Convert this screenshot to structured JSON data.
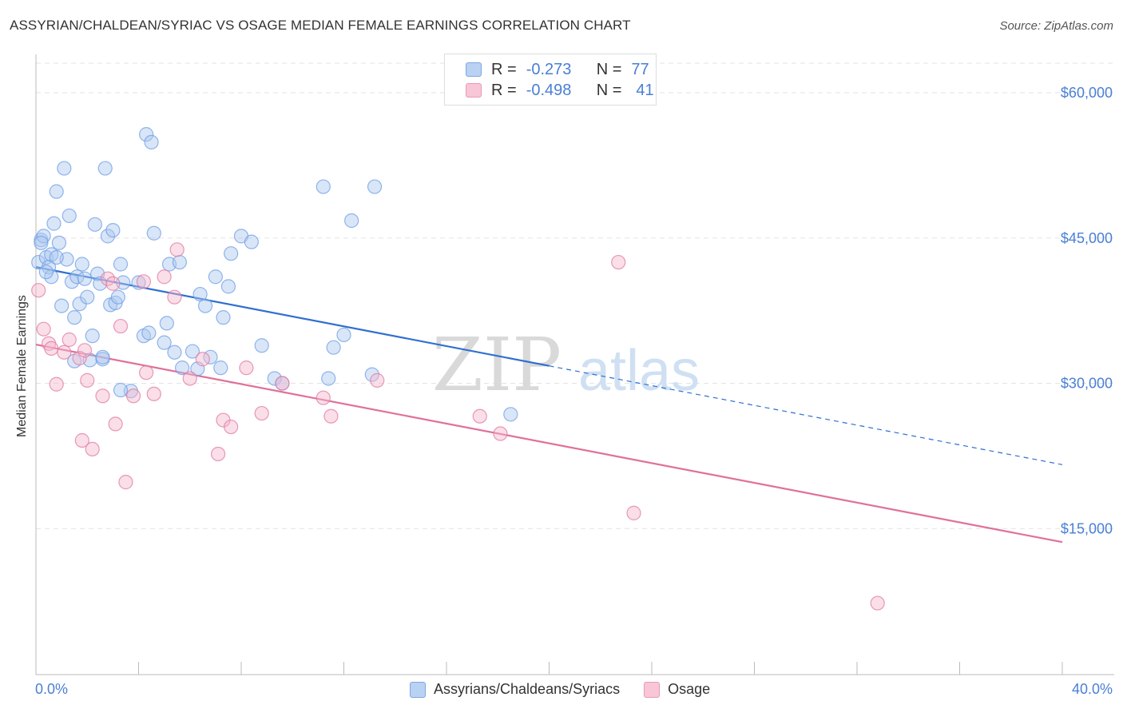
{
  "header": {
    "title": "ASSYRIAN/CHALDEAN/SYRIAC VS OSAGE MEDIAN FEMALE EARNINGS CORRELATION CHART",
    "source": "Source: ZipAtlas.com"
  },
  "watermark": {
    "zip": "ZIP",
    "atlas": "atlas"
  },
  "legend": {
    "r_label": "R =",
    "n_label": "N =",
    "rows": [
      {
        "r": "-0.273",
        "n": "77"
      },
      {
        "r": "-0.498",
        "n": "41"
      }
    ]
  },
  "chart_data": {
    "type": "scatter",
    "ylabel": "Median Female Earnings",
    "x_tick_labels": {
      "min": "0.0%",
      "max": "40.0%"
    },
    "xlim": [
      0,
      40
    ],
    "ylim": [
      0,
      63000
    ],
    "y_ticks": [
      {
        "value": 15000,
        "label": "$15,000"
      },
      {
        "value": 30000,
        "label": "$30,000"
      },
      {
        "value": 45000,
        "label": "$45,000"
      },
      {
        "value": 60000,
        "label": "$60,000"
      }
    ],
    "grid": true,
    "series": [
      {
        "name": "Assyrians/Chaldeans/Syriacs",
        "color": "#6f9de4",
        "fill": "#aac8f0",
        "trendline": {
          "x": [
            0,
            20
          ],
          "y": [
            42000,
            31800
          ],
          "dashed_to": {
            "x": 40,
            "y": 21600
          }
        },
        "points": [
          [
            0.1,
            42500
          ],
          [
            0.2,
            44800
          ],
          [
            0.3,
            45200
          ],
          [
            0.4,
            43000
          ],
          [
            0.5,
            42000
          ],
          [
            0.6,
            41000
          ],
          [
            0.7,
            46500
          ],
          [
            0.8,
            49800
          ],
          [
            0.9,
            44500
          ],
          [
            1.0,
            38000
          ],
          [
            1.1,
            52200
          ],
          [
            1.2,
            42800
          ],
          [
            1.3,
            47300
          ],
          [
            1.4,
            40500
          ],
          [
            1.5,
            36800
          ],
          [
            1.6,
            41000
          ],
          [
            1.7,
            38200
          ],
          [
            1.8,
            42300
          ],
          [
            1.9,
            40800
          ],
          [
            2.0,
            38900
          ],
          [
            2.1,
            32400
          ],
          [
            2.2,
            34900
          ],
          [
            2.3,
            46400
          ],
          [
            2.4,
            41300
          ],
          [
            2.5,
            40300
          ],
          [
            2.6,
            32500
          ],
          [
            2.7,
            52200
          ],
          [
            2.8,
            45200
          ],
          [
            2.9,
            38100
          ],
          [
            3.0,
            45800
          ],
          [
            3.1,
            38300
          ],
          [
            3.2,
            38900
          ],
          [
            3.3,
            42300
          ],
          [
            3.4,
            40400
          ],
          [
            3.7,
            29200
          ],
          [
            4.0,
            40400
          ],
          [
            4.2,
            34900
          ],
          [
            4.3,
            55700
          ],
          [
            4.4,
            35200
          ],
          [
            4.5,
            54900
          ],
          [
            4.6,
            45500
          ],
          [
            5.0,
            34200
          ],
          [
            5.2,
            42300
          ],
          [
            5.4,
            33200
          ],
          [
            5.6,
            42500
          ],
          [
            5.7,
            31600
          ],
          [
            6.1,
            33300
          ],
          [
            6.4,
            39200
          ],
          [
            6.6,
            38000
          ],
          [
            6.8,
            32700
          ],
          [
            7.0,
            41000
          ],
          [
            7.2,
            31600
          ],
          [
            7.3,
            36800
          ],
          [
            7.5,
            40000
          ],
          [
            7.6,
            43400
          ],
          [
            8.0,
            45200
          ],
          [
            8.4,
            44600
          ],
          [
            8.8,
            33900
          ],
          [
            9.3,
            30500
          ],
          [
            11.4,
            30500
          ],
          [
            11.6,
            33700
          ],
          [
            12.0,
            35000
          ],
          [
            12.3,
            46800
          ],
          [
            11.2,
            50300
          ],
          [
            13.1,
            30900
          ],
          [
            13.2,
            50300
          ],
          [
            18.5,
            26800
          ],
          [
            0.2,
            44500
          ],
          [
            0.4,
            41500
          ],
          [
            0.6,
            43300
          ],
          [
            0.8,
            43000
          ],
          [
            1.5,
            32300
          ],
          [
            2.6,
            32700
          ],
          [
            3.3,
            29300
          ],
          [
            5.1,
            36200
          ],
          [
            6.3,
            31500
          ],
          [
            9.6,
            30000
          ]
        ]
      },
      {
        "name": "Osage",
        "color": "#e07aa0",
        "fill": "#f4b6cb",
        "trendline": {
          "x": [
            0,
            40
          ],
          "y": [
            34000,
            13600
          ]
        },
        "points": [
          [
            0.1,
            39600
          ],
          [
            0.3,
            35600
          ],
          [
            0.5,
            34100
          ],
          [
            0.6,
            33600
          ],
          [
            0.8,
            29900
          ],
          [
            1.1,
            33200
          ],
          [
            1.3,
            34500
          ],
          [
            1.7,
            32600
          ],
          [
            1.8,
            24100
          ],
          [
            2.0,
            30300
          ],
          [
            2.2,
            23200
          ],
          [
            2.6,
            28700
          ],
          [
            2.8,
            40800
          ],
          [
            3.0,
            40300
          ],
          [
            3.1,
            25800
          ],
          [
            3.3,
            35900
          ],
          [
            3.5,
            19800
          ],
          [
            3.8,
            28700
          ],
          [
            4.2,
            40500
          ],
          [
            4.3,
            31100
          ],
          [
            4.6,
            28900
          ],
          [
            5.0,
            41000
          ],
          [
            5.4,
            38900
          ],
          [
            5.5,
            43800
          ],
          [
            6.0,
            30500
          ],
          [
            6.5,
            32500
          ],
          [
            7.1,
            22700
          ],
          [
            7.3,
            26200
          ],
          [
            7.6,
            25500
          ],
          [
            8.2,
            31600
          ],
          [
            8.8,
            26900
          ],
          [
            9.6,
            30000
          ],
          [
            11.2,
            28500
          ],
          [
            11.5,
            26600
          ],
          [
            13.3,
            30300
          ],
          [
            17.3,
            26600
          ],
          [
            18.1,
            24800
          ],
          [
            22.7,
            42500
          ],
          [
            23.3,
            16600
          ],
          [
            32.8,
            7300
          ],
          [
            1.9,
            33400
          ]
        ]
      }
    ]
  }
}
